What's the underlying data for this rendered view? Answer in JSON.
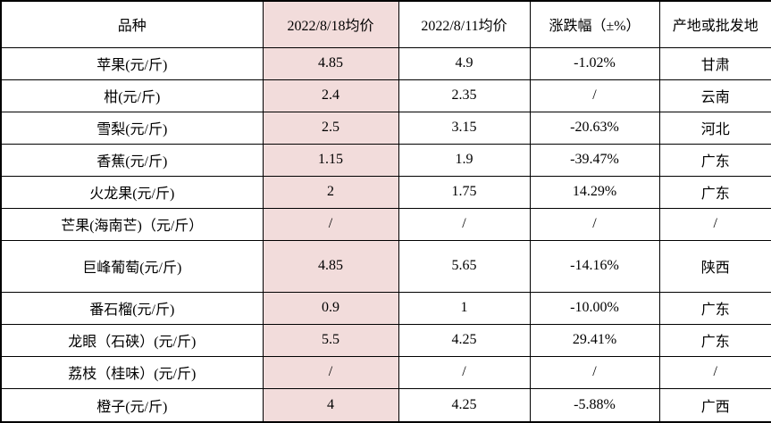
{
  "chart_data": {
    "type": "table",
    "columns": [
      "品种",
      "2022/8/18均价",
      "2022/8/11均价",
      "涨跌幅（±%）",
      "产地或批发地"
    ],
    "rows": [
      [
        "苹果(元/斤)",
        "4.85",
        "4.9",
        "-1.02%",
        "甘肃"
      ],
      [
        "柑(元/斤)",
        "2.4",
        "2.35",
        "/",
        "云南"
      ],
      [
        "雪梨(元/斤)",
        "2.5",
        "3.15",
        "-20.63%",
        "河北"
      ],
      [
        "香蕉(元/斤)",
        "1.15",
        "1.9",
        "-39.47%",
        "广东"
      ],
      [
        "火龙果(元/斤)",
        "2",
        "1.75",
        "14.29%",
        "广东"
      ],
      [
        "芒果(海南芒)（元/斤）",
        "/",
        "/",
        "/",
        "/"
      ],
      [
        "巨峰葡萄(元/斤)",
        "4.85",
        "5.65",
        "-14.16%",
        "陕西"
      ],
      [
        "番石榴(元/斤)",
        "0.9",
        "1",
        "-10.00%",
        "广东"
      ],
      [
        "龙眼（石硖）(元/斤)",
        "5.5",
        "4.25",
        "29.41%",
        "广东"
      ],
      [
        "荔枝（桂味）(元/斤)",
        "/",
        "/",
        "/",
        "/"
      ],
      [
        "橙子(元/斤)",
        "4",
        "4.25",
        "-5.88%",
        "广西"
      ]
    ],
    "title": "",
    "highlighted_column": "2022/8/18均价",
    "grid": true
  },
  "table": {
    "headers": [
      "品种",
      "2022/8/18均价",
      "2022/8/11均价",
      "涨跌幅（±%）",
      "产地或批发地"
    ],
    "rows": [
      {
        "variety": "苹果(元/斤)",
        "price_0818": "4.85",
        "price_0811": "4.9",
        "change": "-1.02%",
        "origin": "甘肃"
      },
      {
        "variety": "柑(元/斤)",
        "price_0818": "2.4",
        "price_0811": "2.35",
        "change": "/",
        "origin": "云南"
      },
      {
        "variety": "雪梨(元/斤)",
        "price_0818": "2.5",
        "price_0811": "3.15",
        "change": "-20.63%",
        "origin": "河北"
      },
      {
        "variety": "香蕉(元/斤)",
        "price_0818": "1.15",
        "price_0811": "1.9",
        "change": "-39.47%",
        "origin": "广东"
      },
      {
        "variety": "火龙果(元/斤)",
        "price_0818": "2",
        "price_0811": "1.75",
        "change": "14.29%",
        "origin": "广东"
      },
      {
        "variety": "芒果(海南芒)（元/斤）",
        "price_0818": "/",
        "price_0811": "/",
        "change": "/",
        "origin": "/"
      },
      {
        "variety": "巨峰葡萄(元/斤)",
        "price_0818": "4.85",
        "price_0811": "5.65",
        "change": "-14.16%",
        "origin": "陕西"
      },
      {
        "variety": "番石榴(元/斤)",
        "price_0818": "0.9",
        "price_0811": "1",
        "change": "-10.00%",
        "origin": "广东"
      },
      {
        "variety": "龙眼（石硖）(元/斤)",
        "price_0818": "5.5",
        "price_0811": "4.25",
        "change": "29.41%",
        "origin": "广东"
      },
      {
        "variety": "荔枝（桂味）(元/斤)",
        "price_0818": "/",
        "price_0811": "/",
        "change": "/",
        "origin": "/"
      },
      {
        "variety": "橙子(元/斤)",
        "price_0818": "4",
        "price_0811": "4.25",
        "change": "-5.88%",
        "origin": "广西"
      }
    ]
  },
  "colors": {
    "highlight_bg": "#f2dcdb",
    "border": "#000000",
    "text": "#000000",
    "background": "#ffffff"
  }
}
